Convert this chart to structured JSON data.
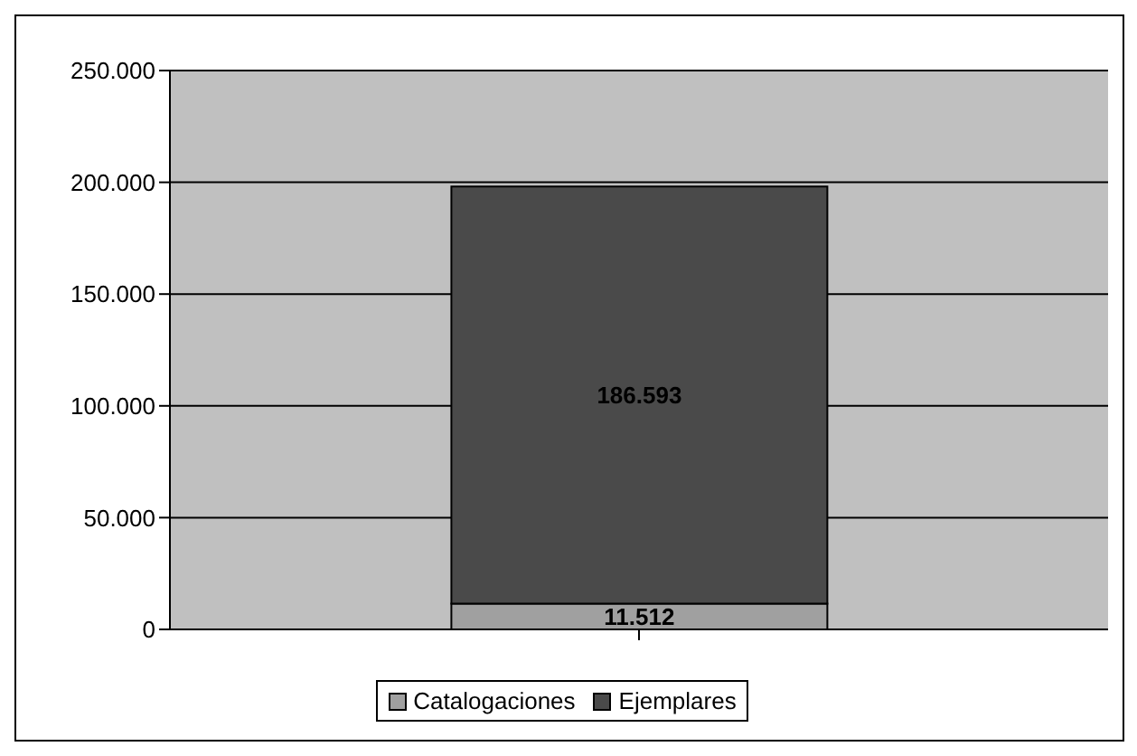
{
  "chart_data": {
    "type": "bar",
    "stacked": true,
    "categories": [
      null
    ],
    "series": [
      {
        "name": "Catalogaciones",
        "color": "#a0a0a0",
        "values": [
          11512
        ],
        "value_labels": [
          "11.512"
        ]
      },
      {
        "name": "Ejemplares",
        "color": "#4a4a4a",
        "values": [
          186593
        ],
        "value_labels": [
          "186.593"
        ]
      }
    ],
    "ylim": [
      0,
      250000
    ],
    "yticks": [
      {
        "value": 0,
        "label": "0"
      },
      {
        "value": 50000,
        "label": "50.000"
      },
      {
        "value": 100000,
        "label": "100.000"
      },
      {
        "value": 150000,
        "label": "150.000"
      },
      {
        "value": 200000,
        "label": "200.000"
      },
      {
        "value": 250000,
        "label": "250.000"
      }
    ],
    "grid": "y",
    "legend": "bottom"
  }
}
